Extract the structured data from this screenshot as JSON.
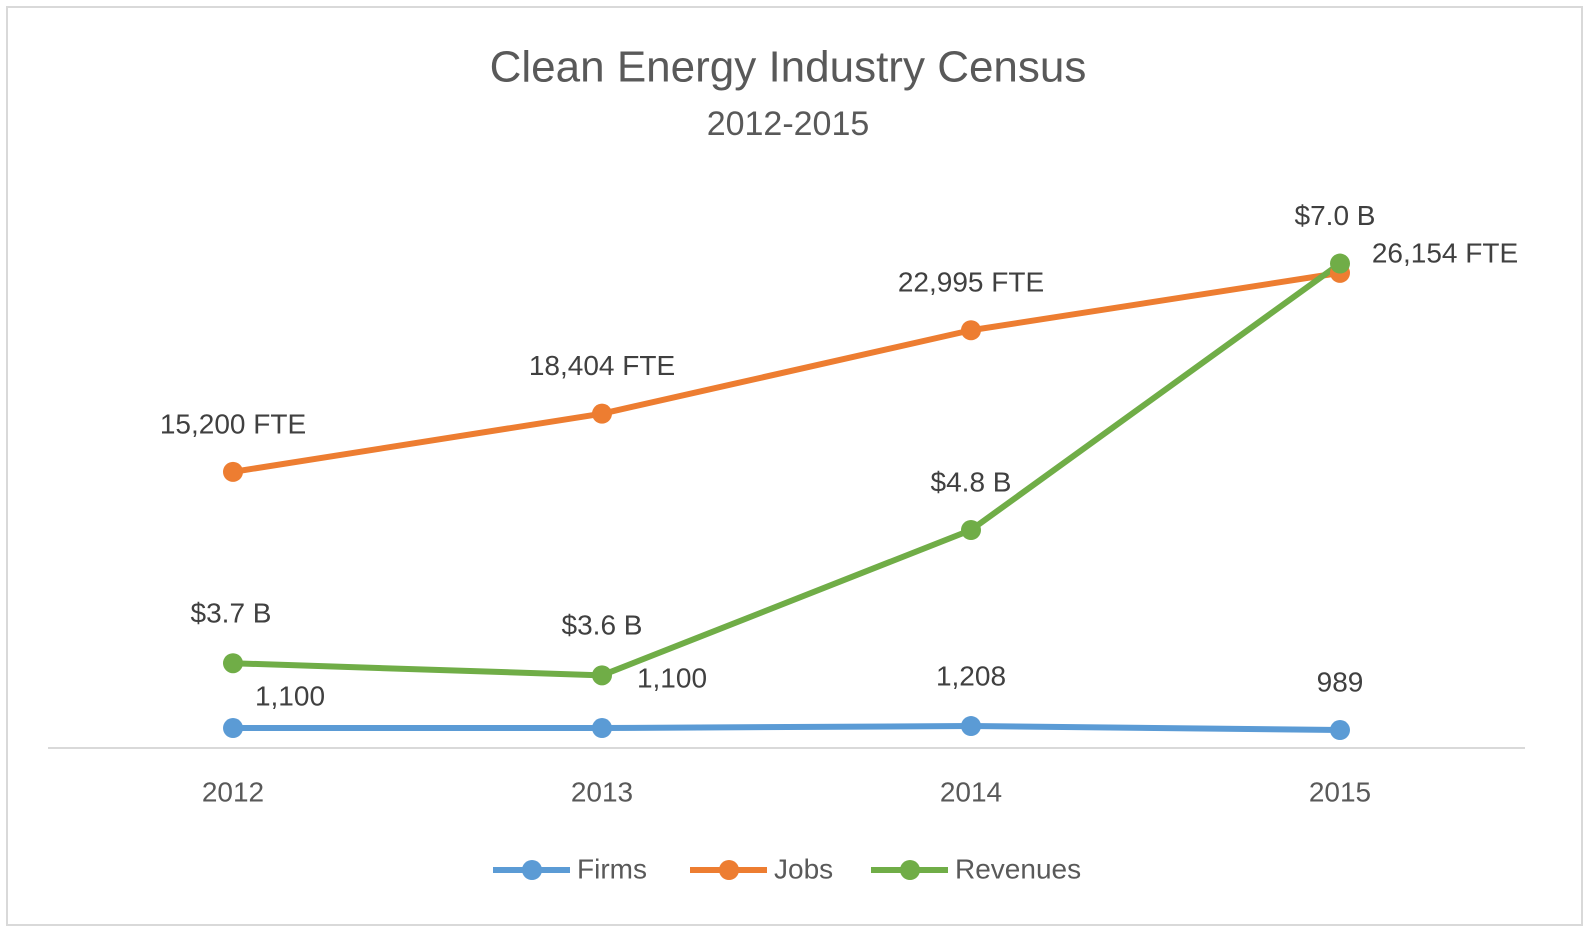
{
  "chart_data": {
    "type": "line",
    "title": "Clean Energy Industry Census",
    "subtitle": "2012-2015",
    "categories": [
      "2012",
      "2013",
      "2014",
      "2015"
    ],
    "ylim": [
      0,
      30000
    ],
    "y2lim": [
      3,
      7.5
    ],
    "legend": "bottom",
    "series": [
      {
        "name": "Firms",
        "color": "#5b9bd5",
        "values": [
          1100,
          1100,
          1208,
          989
        ],
        "value_labels": [
          "1,100",
          "1,100",
          "1,208",
          "989"
        ]
      },
      {
        "name": "Jobs",
        "color": "#ed7d31",
        "values": [
          15200,
          18404,
          22995,
          26154
        ],
        "value_labels": [
          "15,200 FTE",
          "18,404 FTE",
          "22,995 FTE",
          "26,154 FTE"
        ]
      },
      {
        "name": "Revenues",
        "color": "#70ad47",
        "axis": "y2",
        "values": [
          3.7,
          3.6,
          4.8,
          7.0
        ],
        "value_labels": [
          "$3.7 B",
          "$3.6 B",
          "$4.8 B",
          "$7.0 B"
        ]
      }
    ]
  }
}
